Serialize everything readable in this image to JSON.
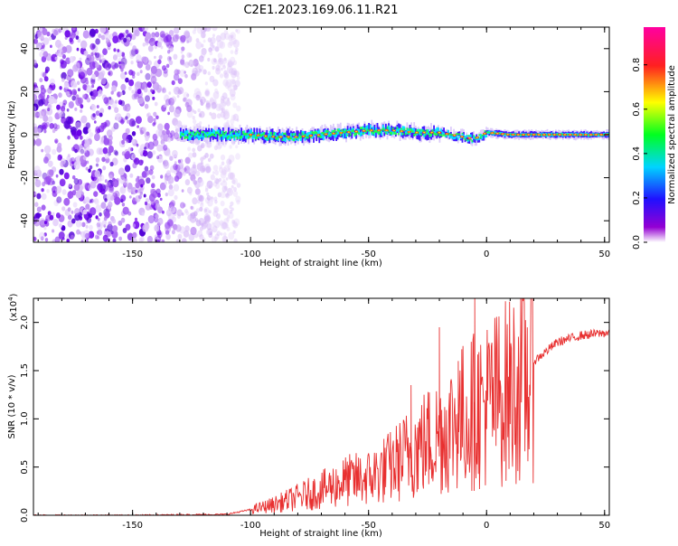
{
  "title": "C2E1.2023.169.06.11.R21",
  "colorbar": {
    "label": "Normalized spectral amplitude",
    "ticks": [
      "0.0",
      "0.2",
      "0.4",
      "0.6",
      "0.8"
    ],
    "tick_values": [
      0.0,
      0.2,
      0.4,
      0.6,
      0.8
    ],
    "range": [
      0,
      0.97
    ]
  },
  "chart_data": [
    {
      "type": "heatmap",
      "xlabel": "Height of straight line (km)",
      "ylabel": "Frequency (Hz)",
      "xlim": [
        -192,
        52
      ],
      "ylim": [
        -50,
        50
      ],
      "x_ticks": [
        -150,
        -100,
        -50,
        0,
        50
      ],
      "x_tick_labels": [
        "-150",
        "-100",
        "-50",
        "0",
        "50"
      ],
      "y_ticks": [
        -40,
        -20,
        0,
        20,
        40
      ],
      "y_tick_labels": [
        "-40",
        "-20",
        "0",
        "20",
        "40"
      ],
      "noise_region_x": [
        -192,
        -105
      ],
      "ridge": {
        "x": [
          -130,
          -115,
          -100,
          -90,
          -80,
          -70,
          -60,
          -50,
          -40,
          -30,
          -25,
          -20,
          -15,
          -10,
          -5,
          0,
          10,
          20,
          30,
          40,
          52
        ],
        "frequency": [
          0,
          0,
          0,
          -1,
          -1,
          0,
          1,
          2,
          2,
          1,
          1,
          1,
          0,
          -1,
          -2,
          1,
          0,
          0,
          0,
          0,
          0
        ]
      }
    },
    {
      "type": "line",
      "xlabel": "Height of straight line (km)",
      "ylabel": "SNR (10 * v/v)",
      "y_multiplier": "(x10",
      "y_multiplier_exp": "4",
      "y_multiplier_close": ")",
      "xlim": [
        -192,
        52
      ],
      "ylim": [
        0,
        2.25
      ],
      "x_ticks": [
        -150,
        -100,
        -50,
        0,
        50
      ],
      "x_tick_labels": [
        "-150",
        "-100",
        "-50",
        "0",
        "50"
      ],
      "y_ticks": [
        0,
        0.5,
        1.0,
        1.5,
        2.0
      ],
      "y_tick_labels": [
        "0.0",
        "0.5",
        "1.0",
        "1.5",
        "2.0"
      ],
      "series": [
        {
          "color": "#e83030",
          "x": [
            -192,
            -150,
            -110,
            -100,
            -90,
            -80,
            -70,
            -60,
            -50,
            -40,
            -30,
            -20,
            -10,
            0,
            10,
            20,
            30,
            40,
            52
          ],
          "y": [
            0.0,
            0.0,
            0.01,
            0.06,
            0.12,
            0.2,
            0.28,
            0.38,
            0.42,
            0.55,
            0.75,
            0.9,
            1.1,
            1.25,
            1.4,
            1.6,
            1.8,
            1.87,
            1.9
          ]
        }
      ],
      "spikes": [
        {
          "x": -20,
          "y": 1.95
        },
        {
          "x": -5,
          "y": 2.25
        },
        {
          "x": -12,
          "y": 1.6
        },
        {
          "x": -32,
          "y": 1.35
        }
      ]
    }
  ]
}
